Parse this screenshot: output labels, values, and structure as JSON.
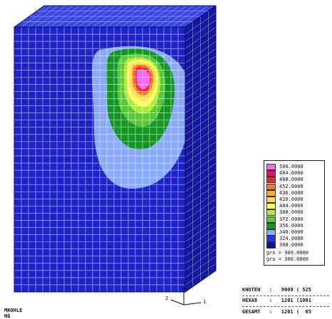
{
  "legend": {
    "levels": [
      {
        "label": "500.0000",
        "color": "#ff66ff"
      },
      {
        "label": "484.0000",
        "color": "#e8106a"
      },
      {
        "label": "468.0000",
        "color": "#ff2020"
      },
      {
        "label": "452.0000",
        "color": "#ff7722"
      },
      {
        "label": "436.0000",
        "color": "#ffaa33"
      },
      {
        "label": "420.0000",
        "color": "#ffdd44"
      },
      {
        "label": "404.0000",
        "color": "#ffff55"
      },
      {
        "label": "388.0000",
        "color": "#aaee33"
      },
      {
        "label": "372.0000",
        "color": "#55cc33"
      },
      {
        "label": "356.0000",
        "color": "#119922"
      },
      {
        "label": "340.0000",
        "color": "#88aaff"
      },
      {
        "label": "324.0000",
        "color": "#2233ff"
      },
      {
        "label": "308.0000",
        "color": "#111199"
      }
    ],
    "gro_label": "gro = 900.0000",
    "grn_label": "gru = 300.0000"
  },
  "stats": {
    "knoten": "KNOTEN   :   9009 ( 525",
    "hexa": "HEXA8    :   1201 (1001",
    "gesamt": "GESAMT   :   1201 (  65"
  },
  "model_labels": [
    "MKOHLE",
    "NG"
  ],
  "axes": {
    "y": "3",
    "x": "1",
    "z": "2"
  },
  "colors": {
    "mesh_front": "#1e23c8",
    "mesh_side": "#151a9c",
    "mesh_top": "#3a46e0",
    "grid_line": "#ffffff"
  }
}
